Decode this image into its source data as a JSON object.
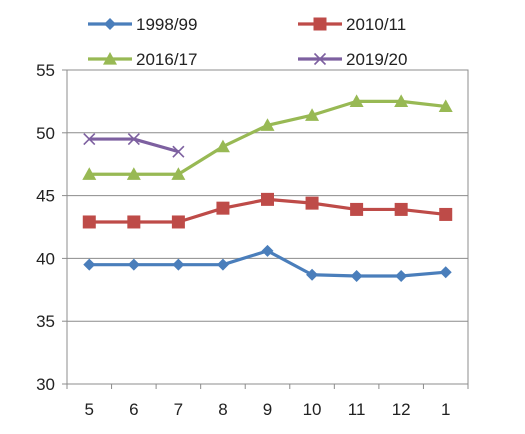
{
  "chart_data": {
    "type": "line",
    "title": "",
    "xlabel": "",
    "ylabel": "",
    "categories": [
      "5",
      "6",
      "7",
      "8",
      "9",
      "10",
      "11",
      "12",
      "1"
    ],
    "ylim": [
      30,
      55
    ],
    "yticks": [
      "30",
      "35",
      "40",
      "45",
      "50",
      "55"
    ],
    "grid": "horizontal",
    "legend_position": "top",
    "series": [
      {
        "name": "1998/99",
        "color": "#4A7EBB",
        "marker": "diamond",
        "values": [
          39.5,
          39.5,
          39.5,
          39.5,
          40.6,
          38.7,
          38.6,
          38.6,
          38.9
        ]
      },
      {
        "name": "2010/11",
        "color": "#BE4B48",
        "marker": "square",
        "values": [
          42.9,
          42.9,
          42.9,
          44.0,
          44.7,
          44.4,
          43.9,
          43.9,
          43.5
        ]
      },
      {
        "name": "2016/17",
        "color": "#98B954",
        "marker": "triangle",
        "values": [
          46.7,
          46.7,
          46.7,
          48.9,
          50.6,
          51.4,
          52.5,
          52.5,
          52.1
        ]
      },
      {
        "name": "2019/20",
        "color": "#7D60A0",
        "marker": "cross",
        "values": [
          49.5,
          49.5,
          48.5,
          null,
          null,
          null,
          null,
          null,
          null
        ]
      }
    ]
  }
}
